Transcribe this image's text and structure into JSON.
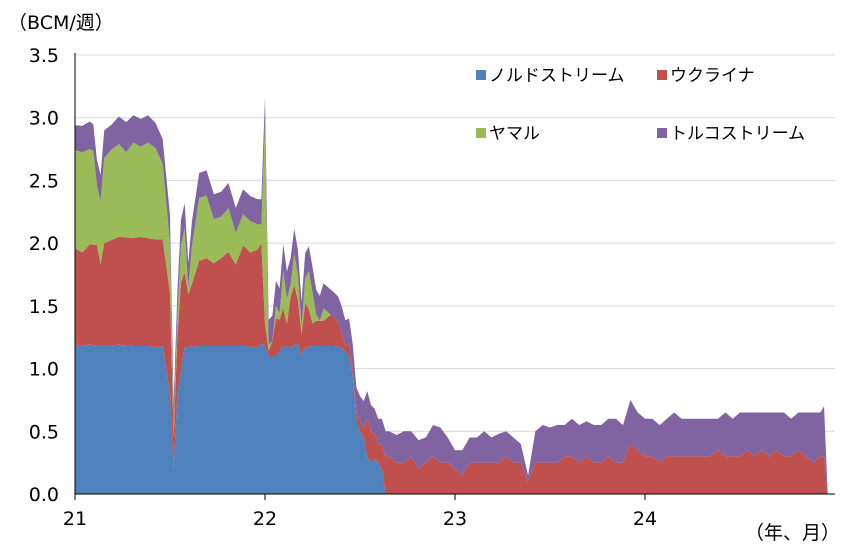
{
  "chart_data": {
    "type": "area",
    "stacked": true,
    "y_unit_label": "（BCM/週）",
    "x_unit_label": "（年、月）",
    "ylim": [
      0,
      3.5
    ],
    "y_ticks": [
      "0.0",
      "0.5",
      "1.0",
      "1.5",
      "2.0",
      "2.5",
      "3.0",
      "3.5"
    ],
    "x_ticks": [
      {
        "label": "21",
        "t": 0
      },
      {
        "label": "22",
        "t": 52
      },
      {
        "label": "23",
        "t": 104
      },
      {
        "label": "24",
        "t": 156
      }
    ],
    "x_range": [
      0,
      208
    ],
    "grid": true,
    "legend_position": "top-right",
    "series": [
      {
        "name": "ノルドストリーム",
        "color": "#4f81bd",
        "points": [
          [
            0,
            1.18
          ],
          [
            4,
            1.19
          ],
          [
            8,
            1.18
          ],
          [
            12,
            1.19
          ],
          [
            16,
            1.18
          ],
          [
            20,
            1.18
          ],
          [
            22,
            1.17
          ],
          [
            24,
            1.18
          ],
          [
            26,
            0.8
          ],
          [
            27,
            0.2
          ],
          [
            28,
            0.8
          ],
          [
            30,
            1.17
          ],
          [
            34,
            1.18
          ],
          [
            38,
            1.18
          ],
          [
            42,
            1.18
          ],
          [
            46,
            1.18
          ],
          [
            50,
            1.17
          ],
          [
            51,
            1.2
          ],
          [
            52,
            1.18
          ],
          [
            53,
            1.1
          ],
          [
            55,
            1.1
          ],
          [
            57,
            1.18
          ],
          [
            59,
            1.17
          ],
          [
            61,
            1.2
          ],
          [
            62,
            1.1
          ],
          [
            63,
            1.17
          ],
          [
            65,
            1.18
          ],
          [
            67,
            1.18
          ],
          [
            69,
            1.18
          ],
          [
            71,
            1.18
          ],
          [
            73,
            1.17
          ],
          [
            75,
            1.1
          ],
          [
            76,
            0.95
          ],
          [
            77,
            0.6
          ],
          [
            78,
            0.5
          ],
          [
            79,
            0.45
          ],
          [
            80,
            0.3
          ],
          [
            81,
            0.25
          ],
          [
            82,
            0.28
          ],
          [
            83,
            0.25
          ],
          [
            84,
            0.2
          ],
          [
            85,
            0.0
          ],
          [
            208,
            0.0
          ]
        ]
      },
      {
        "name": "ウクライナ",
        "color": "#c0504d",
        "points": [
          [
            0,
            0.78
          ],
          [
            2,
            0.74
          ],
          [
            4,
            0.8
          ],
          [
            6,
            0.8
          ],
          [
            7,
            0.65
          ],
          [
            8,
            0.82
          ],
          [
            10,
            0.84
          ],
          [
            12,
            0.86
          ],
          [
            14,
            0.86
          ],
          [
            16,
            0.86
          ],
          [
            18,
            0.87
          ],
          [
            20,
            0.86
          ],
          [
            22,
            0.86
          ],
          [
            24,
            0.85
          ],
          [
            26,
            0.8
          ],
          [
            27,
            0.25
          ],
          [
            28,
            0.45
          ],
          [
            29,
            0.7
          ],
          [
            30,
            0.6
          ],
          [
            31,
            0.42
          ],
          [
            32,
            0.5
          ],
          [
            34,
            0.68
          ],
          [
            36,
            0.7
          ],
          [
            38,
            0.66
          ],
          [
            40,
            0.7
          ],
          [
            42,
            0.75
          ],
          [
            44,
            0.65
          ],
          [
            46,
            0.8
          ],
          [
            48,
            0.75
          ],
          [
            50,
            0.78
          ],
          [
            51,
            0.8
          ],
          [
            52,
            0.18
          ],
          [
            53,
            0.04
          ],
          [
            54,
            0.12
          ],
          [
            55,
            0.3
          ],
          [
            56,
            0.25
          ],
          [
            57,
            0.3
          ],
          [
            58,
            0.18
          ],
          [
            59,
            0.4
          ],
          [
            60,
            0.48
          ],
          [
            61,
            0.35
          ],
          [
            62,
            0.18
          ],
          [
            63,
            0.35
          ],
          [
            64,
            0.3
          ],
          [
            65,
            0.18
          ],
          [
            66,
            0.2
          ],
          [
            68,
            0.2
          ],
          [
            70,
            0.25
          ],
          [
            72,
            0.2
          ],
          [
            74,
            0.05
          ],
          [
            75,
            0.1
          ],
          [
            76,
            0.05
          ],
          [
            77,
            0.05
          ],
          [
            78,
            0.08
          ],
          [
            79,
            0.08
          ],
          [
            80,
            0.3
          ],
          [
            81,
            0.25
          ],
          [
            82,
            0.2
          ],
          [
            83,
            0.15
          ],
          [
            84,
            0.2
          ],
          [
            85,
            0.3
          ],
          [
            86,
            0.3
          ],
          [
            88,
            0.25
          ],
          [
            90,
            0.25
          ],
          [
            92,
            0.3
          ],
          [
            94,
            0.2
          ],
          [
            96,
            0.25
          ],
          [
            98,
            0.3
          ],
          [
            100,
            0.25
          ],
          [
            102,
            0.25
          ],
          [
            104,
            0.2
          ],
          [
            106,
            0.15
          ],
          [
            108,
            0.25
          ],
          [
            110,
            0.25
          ],
          [
            112,
            0.25
          ],
          [
            114,
            0.25
          ],
          [
            116,
            0.25
          ],
          [
            118,
            0.3
          ],
          [
            120,
            0.25
          ],
          [
            122,
            0.25
          ],
          [
            124,
            0.1
          ],
          [
            126,
            0.25
          ],
          [
            128,
            0.25
          ],
          [
            130,
            0.25
          ],
          [
            132,
            0.25
          ],
          [
            134,
            0.3
          ],
          [
            136,
            0.3
          ],
          [
            138,
            0.25
          ],
          [
            140,
            0.3
          ],
          [
            142,
            0.25
          ],
          [
            144,
            0.25
          ],
          [
            146,
            0.3
          ],
          [
            148,
            0.25
          ],
          [
            150,
            0.25
          ],
          [
            152,
            0.4
          ],
          [
            154,
            0.35
          ],
          [
            156,
            0.3
          ],
          [
            158,
            0.3
          ],
          [
            160,
            0.25
          ],
          [
            162,
            0.3
          ],
          [
            164,
            0.3
          ],
          [
            166,
            0.3
          ],
          [
            168,
            0.3
          ],
          [
            170,
            0.3
          ],
          [
            172,
            0.3
          ],
          [
            174,
            0.3
          ],
          [
            176,
            0.35
          ],
          [
            178,
            0.3
          ],
          [
            180,
            0.3
          ],
          [
            182,
            0.3
          ],
          [
            184,
            0.35
          ],
          [
            186,
            0.3
          ],
          [
            188,
            0.35
          ],
          [
            190,
            0.3
          ],
          [
            192,
            0.35
          ],
          [
            194,
            0.3
          ],
          [
            196,
            0.3
          ],
          [
            198,
            0.35
          ],
          [
            200,
            0.3
          ],
          [
            202,
            0.25
          ],
          [
            204,
            0.3
          ],
          [
            205,
            0.3
          ],
          [
            206,
            0.0
          ],
          [
            208,
            0.0
          ]
        ]
      },
      {
        "name": "ヤマル",
        "color": "#9bbb59",
        "points": [
          [
            0,
            0.78
          ],
          [
            2,
            0.8
          ],
          [
            4,
            0.76
          ],
          [
            5,
            0.75
          ],
          [
            6,
            0.48
          ],
          [
            7,
            0.5
          ],
          [
            8,
            0.68
          ],
          [
            10,
            0.72
          ],
          [
            12,
            0.74
          ],
          [
            14,
            0.68
          ],
          [
            16,
            0.76
          ],
          [
            18,
            0.72
          ],
          [
            20,
            0.76
          ],
          [
            22,
            0.73
          ],
          [
            24,
            0.6
          ],
          [
            26,
            0.4
          ],
          [
            27,
            0.05
          ],
          [
            28,
            0.15
          ],
          [
            29,
            0.3
          ],
          [
            30,
            0.35
          ],
          [
            31,
            0.05
          ],
          [
            32,
            0.3
          ],
          [
            34,
            0.5
          ],
          [
            36,
            0.5
          ],
          [
            38,
            0.35
          ],
          [
            40,
            0.33
          ],
          [
            42,
            0.35
          ],
          [
            44,
            0.25
          ],
          [
            46,
            0.25
          ],
          [
            48,
            0.25
          ],
          [
            50,
            0.2
          ],
          [
            51,
            0.15
          ],
          [
            52,
            1.6
          ],
          [
            53,
            0.05
          ],
          [
            54,
            0.0
          ],
          [
            55,
            0.1
          ],
          [
            56,
            0.05
          ],
          [
            57,
            0.3
          ],
          [
            58,
            0.2
          ],
          [
            59,
            0.1
          ],
          [
            60,
            0.25
          ],
          [
            61,
            0.2
          ],
          [
            62,
            0.05
          ],
          [
            63,
            0.2
          ],
          [
            64,
            0.3
          ],
          [
            65,
            0.25
          ],
          [
            66,
            0.05
          ],
          [
            67,
            0.0
          ],
          [
            68,
            0.1
          ],
          [
            69,
            0.05
          ],
          [
            70,
            0.0
          ],
          [
            208,
            0.0
          ]
        ]
      },
      {
        "name": "トルコストリーム",
        "color": "#8064a2",
        "points": [
          [
            0,
            0.2
          ],
          [
            2,
            0.21
          ],
          [
            4,
            0.22
          ],
          [
            6,
            0.2
          ],
          [
            8,
            0.22
          ],
          [
            10,
            0.2
          ],
          [
            12,
            0.22
          ],
          [
            14,
            0.24
          ],
          [
            16,
            0.22
          ],
          [
            18,
            0.22
          ],
          [
            20,
            0.22
          ],
          [
            22,
            0.2
          ],
          [
            24,
            0.2
          ],
          [
            26,
            0.22
          ],
          [
            28,
            0.2
          ],
          [
            30,
            0.2
          ],
          [
            32,
            0.2
          ],
          [
            34,
            0.2
          ],
          [
            36,
            0.2
          ],
          [
            38,
            0.2
          ],
          [
            40,
            0.2
          ],
          [
            42,
            0.2
          ],
          [
            44,
            0.2
          ],
          [
            46,
            0.2
          ],
          [
            48,
            0.2
          ],
          [
            50,
            0.2
          ],
          [
            52,
            0.2
          ],
          [
            54,
            0.2
          ],
          [
            56,
            0.2
          ],
          [
            58,
            0.22
          ],
          [
            60,
            0.2
          ],
          [
            62,
            0.2
          ],
          [
            64,
            0.2
          ],
          [
            66,
            0.2
          ],
          [
            68,
            0.2
          ],
          [
            70,
            0.2
          ],
          [
            72,
            0.2
          ],
          [
            74,
            0.2
          ],
          [
            76,
            0.2
          ],
          [
            78,
            0.2
          ],
          [
            80,
            0.22
          ],
          [
            82,
            0.2
          ],
          [
            84,
            0.2
          ],
          [
            86,
            0.2
          ],
          [
            88,
            0.22
          ],
          [
            90,
            0.25
          ],
          [
            92,
            0.2
          ],
          [
            94,
            0.23
          ],
          [
            96,
            0.2
          ],
          [
            98,
            0.25
          ],
          [
            100,
            0.28
          ],
          [
            102,
            0.2
          ],
          [
            104,
            0.15
          ],
          [
            106,
            0.2
          ],
          [
            108,
            0.2
          ],
          [
            110,
            0.2
          ],
          [
            112,
            0.25
          ],
          [
            114,
            0.2
          ],
          [
            116,
            0.23
          ],
          [
            118,
            0.2
          ],
          [
            120,
            0.2
          ],
          [
            122,
            0.15
          ],
          [
            124,
            0.05
          ],
          [
            126,
            0.25
          ],
          [
            128,
            0.3
          ],
          [
            130,
            0.28
          ],
          [
            132,
            0.3
          ],
          [
            134,
            0.25
          ],
          [
            136,
            0.3
          ],
          [
            138,
            0.3
          ],
          [
            140,
            0.28
          ],
          [
            142,
            0.3
          ],
          [
            144,
            0.3
          ],
          [
            146,
            0.3
          ],
          [
            148,
            0.35
          ],
          [
            150,
            0.3
          ],
          [
            152,
            0.35
          ],
          [
            154,
            0.3
          ],
          [
            156,
            0.3
          ],
          [
            158,
            0.3
          ],
          [
            160,
            0.3
          ],
          [
            162,
            0.3
          ],
          [
            164,
            0.35
          ],
          [
            166,
            0.3
          ],
          [
            168,
            0.3
          ],
          [
            170,
            0.3
          ],
          [
            172,
            0.3
          ],
          [
            174,
            0.3
          ],
          [
            176,
            0.25
          ],
          [
            178,
            0.35
          ],
          [
            180,
            0.3
          ],
          [
            182,
            0.35
          ],
          [
            184,
            0.3
          ],
          [
            186,
            0.35
          ],
          [
            188,
            0.3
          ],
          [
            190,
            0.35
          ],
          [
            192,
            0.3
          ],
          [
            194,
            0.35
          ],
          [
            196,
            0.3
          ],
          [
            198,
            0.3
          ],
          [
            200,
            0.35
          ],
          [
            202,
            0.4
          ],
          [
            204,
            0.35
          ],
          [
            205,
            0.4
          ],
          [
            206,
            0.0
          ],
          [
            208,
            0.0
          ]
        ]
      }
    ]
  }
}
